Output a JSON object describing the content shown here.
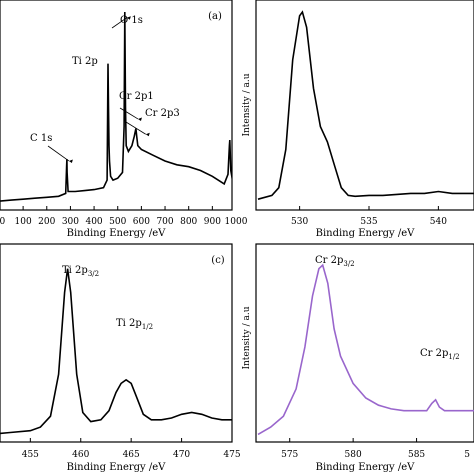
{
  "chart_data": [
    {
      "type": "line",
      "panel_label": "(a)",
      "xlabel": "Binding Energy /eV",
      "ylabel": "",
      "xlim": [
        -40,
        1000
      ],
      "x_ticks": [
        0,
        100,
        200,
        300,
        400,
        500,
        600,
        700,
        800,
        900,
        1000
      ],
      "x_tick_labels": [
        "00",
        "100",
        "200",
        "300",
        "400",
        "500",
        "600",
        "700",
        "800",
        "900",
        "1000"
      ],
      "color": "#000000",
      "annotations": [
        {
          "text": "O 1s",
          "x": 530,
          "y": 0.97
        },
        {
          "text": "Ti 2p",
          "x": 459,
          "y": 0.63
        },
        {
          "text": "Cr 2p1",
          "x": 577,
          "y": 0.44
        },
        {
          "text": "Cr 2p3",
          "x": 610,
          "y": 0.36
        },
        {
          "text": "C 1s",
          "x": 285,
          "y": 0.22
        }
      ],
      "series": [
        {
          "x": [
            -40,
            0,
            50,
            100,
            150,
            200,
            250,
            280,
            284,
            285,
            286,
            290,
            320,
            360,
            400,
            440,
            455,
            457,
            459,
            461,
            463,
            465,
            470,
            480,
            500,
            520,
            527,
            530,
            533,
            536,
            545,
            560,
            570,
            575,
            577,
            580,
            585,
            600,
            650,
            700,
            750,
            800,
            850,
            900,
            950,
            966,
            972,
            974,
            978,
            985,
            1000
          ],
          "y": [
            0.01,
            0.01,
            0.015,
            0.02,
            0.025,
            0.03,
            0.035,
            0.05,
            0.19,
            0.23,
            0.16,
            0.06,
            0.06,
            0.065,
            0.07,
            0.08,
            0.12,
            0.45,
            0.73,
            0.5,
            0.3,
            0.22,
            0.14,
            0.12,
            0.13,
            0.16,
            0.4,
            1.0,
            0.5,
            0.3,
            0.27,
            0.3,
            0.35,
            0.38,
            0.39,
            0.35,
            0.3,
            0.28,
            0.25,
            0.22,
            0.2,
            0.19,
            0.17,
            0.14,
            0.1,
            0.15,
            0.3,
            0.33,
            0.17,
            0.12,
            0.1
          ]
        }
      ]
    },
    {
      "type": "line",
      "panel_label": "",
      "xlabel": "Binding Energy /eV",
      "ylabel": "Intensity / a.u",
      "xlim": [
        527,
        543
      ],
      "x_ticks": [
        530,
        535,
        540
      ],
      "x_tick_labels": [
        "530",
        "535",
        "540"
      ],
      "color": "#000000",
      "series": [
        {
          "x": [
            527,
            528,
            528.5,
            529,
            529.5,
            530,
            530.2,
            530.5,
            531,
            531.5,
            532,
            532.5,
            533,
            533.5,
            534,
            535,
            536,
            537,
            538,
            539,
            540,
            541,
            542,
            543
          ],
          "y": [
            0.02,
            0.04,
            0.08,
            0.28,
            0.75,
            0.98,
            1.0,
            0.92,
            0.6,
            0.4,
            0.32,
            0.2,
            0.08,
            0.04,
            0.035,
            0.04,
            0.04,
            0.045,
            0.05,
            0.05,
            0.06,
            0.05,
            0.05,
            0.05
          ]
        }
      ]
    },
    {
      "type": "line",
      "panel_label": "(c)",
      "xlabel": "Binding Energy /eV",
      "ylabel": "",
      "xlim": [
        451,
        475
      ],
      "x_ticks": [
        455,
        460,
        465,
        470,
        475
      ],
      "x_tick_labels": [
        "455",
        "460",
        "465",
        "470",
        "475"
      ],
      "color": "#000000",
      "annotations": [
        {
          "text": "Ti 2p",
          "sub": "3/2",
          "x": 458.7,
          "y": 1.0
        },
        {
          "text": "Ti 2p",
          "sub": "1/2",
          "x": 464.5,
          "y": 0.4
        }
      ],
      "series": [
        {
          "x": [
            451,
            453,
            455,
            456,
            457,
            457.8,
            458.4,
            458.7,
            459,
            459.6,
            460.2,
            461,
            462,
            462.8,
            463.5,
            464,
            464.5,
            465,
            465.5,
            466.2,
            467,
            468,
            469,
            470,
            471,
            472,
            473,
            474,
            475
          ],
          "y": [
            0.02,
            0.03,
            0.04,
            0.06,
            0.12,
            0.35,
            0.8,
            0.93,
            0.8,
            0.35,
            0.14,
            0.09,
            0.1,
            0.15,
            0.25,
            0.3,
            0.32,
            0.3,
            0.23,
            0.13,
            0.1,
            0.1,
            0.11,
            0.13,
            0.14,
            0.13,
            0.11,
            0.1,
            0.1
          ]
        }
      ]
    },
    {
      "type": "line",
      "panel_label": "",
      "xlabel": "Binding Energy /eV",
      "ylabel": "Intensity / a.u",
      "xlim": [
        572.5,
        590
      ],
      "x_ticks": [
        575,
        580,
        585
      ],
      "x_tick_labels": [
        "575",
        "580",
        "585"
      ],
      "extra_tick_label": "5",
      "color": "#9966cc",
      "annotations": [
        {
          "text": "Cr 2p",
          "sub": "3/2",
          "x": 577.6,
          "y": 1.0
        },
        {
          "text": "Cr 2p",
          "sub": "1/2",
          "x": 586.5,
          "y": 0.2
        }
      ],
      "series": [
        {
          "x": [
            572.5,
            573.5,
            574.5,
            575.5,
            576.2,
            576.8,
            577.3,
            577.6,
            578,
            578.5,
            579,
            580,
            581,
            582,
            583,
            584,
            585,
            585.8,
            586.2,
            586.5,
            586.8,
            587.2,
            588,
            589,
            590
          ],
          "y": [
            0.02,
            0.06,
            0.12,
            0.27,
            0.5,
            0.78,
            0.93,
            0.95,
            0.85,
            0.6,
            0.45,
            0.3,
            0.22,
            0.18,
            0.16,
            0.15,
            0.15,
            0.15,
            0.19,
            0.21,
            0.17,
            0.15,
            0.15,
            0.15,
            0.15
          ]
        }
      ]
    }
  ]
}
